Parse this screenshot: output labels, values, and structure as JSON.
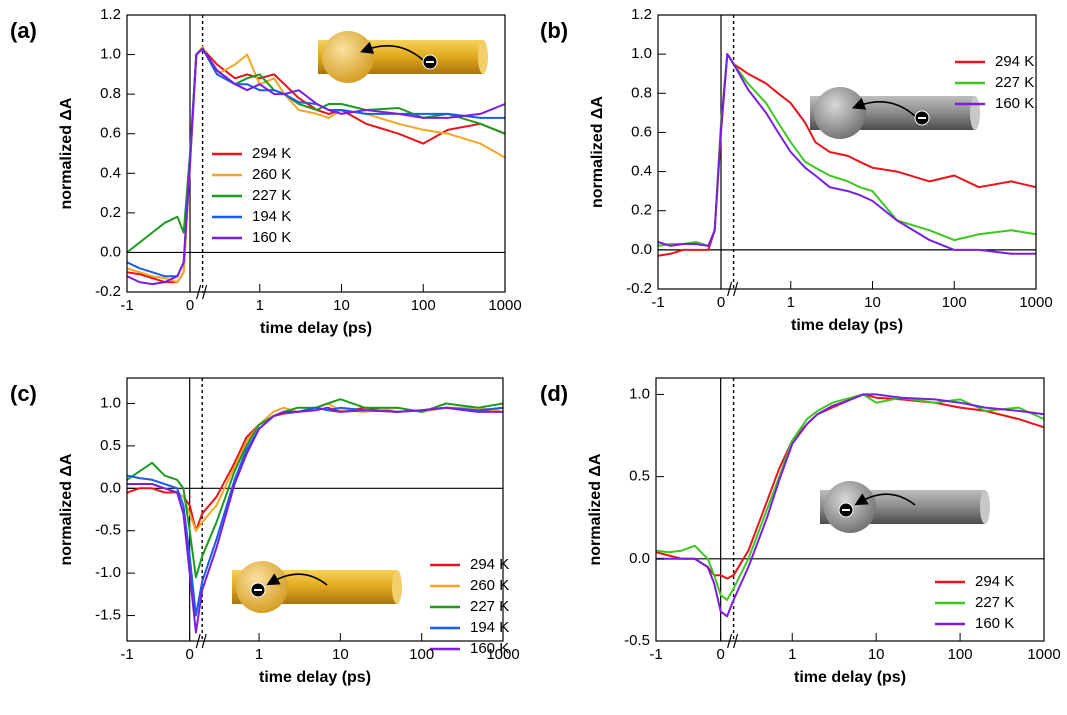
{
  "chart_data": [
    {
      "type": "line",
      "label": "(a)",
      "xlabel": "time delay (ps)",
      "ylabel": "normalized ΔA",
      "xlim": [
        -1,
        1000
      ],
      "xbreak": 0.2,
      "xticks": [
        -1,
        0,
        1,
        10,
        100,
        1000
      ],
      "ylim": [
        -0.2,
        1.2
      ],
      "yticks": [
        -0.2,
        {
          "value": 0,
          "label": "0.0"
        },
        0.2,
        0.4,
        0.6,
        0.8,
        {
          "value": 1,
          "label": "1.0"
        },
        1.2
      ],
      "x": [
        -1,
        -0.8,
        -0.6,
        -0.4,
        -0.2,
        -0.1,
        0,
        0.1,
        0.2,
        0.3,
        0.5,
        0.7,
        1,
        1.5,
        2,
        3,
        5,
        7,
        10,
        20,
        50,
        100,
        200,
        500,
        1000
      ],
      "series": [
        {
          "name": "294 K",
          "color": "#e8141a",
          "values": [
            -0.1,
            -0.11,
            -0.13,
            -0.15,
            -0.15,
            -0.1,
            0.45,
            1.0,
            1.03,
            0.95,
            0.88,
            0.9,
            0.88,
            0.9,
            0.85,
            0.78,
            0.72,
            0.7,
            0.72,
            0.65,
            0.6,
            0.55,
            0.62,
            0.65,
            0.6
          ]
        },
        {
          "name": "260 K",
          "color": "#f5a623",
          "values": [
            -0.08,
            -0.1,
            -0.12,
            -0.13,
            -0.15,
            -0.1,
            0.45,
            1.0,
            1.04,
            0.9,
            0.95,
            1.0,
            0.85,
            0.88,
            0.8,
            0.72,
            0.7,
            0.68,
            0.72,
            0.7,
            0.65,
            0.62,
            0.6,
            0.55,
            0.48
          ]
        },
        {
          "name": "227 K",
          "color": "#1e9a1e",
          "values": [
            0,
            0.05,
            0.1,
            0.15,
            0.18,
            0.1,
            0.5,
            1.0,
            1.03,
            0.92,
            0.85,
            0.88,
            0.9,
            0.82,
            0.8,
            0.75,
            0.72,
            0.75,
            0.75,
            0.72,
            0.73,
            0.68,
            0.7,
            0.65,
            0.6
          ]
        },
        {
          "name": "194 K",
          "color": "#1a5ee8",
          "values": [
            -0.05,
            -0.08,
            -0.1,
            -0.12,
            -0.12,
            -0.05,
            0.48,
            1.0,
            1.03,
            0.9,
            0.85,
            0.85,
            0.82,
            0.82,
            0.8,
            0.76,
            0.75,
            0.72,
            0.72,
            0.7,
            0.7,
            0.7,
            0.7,
            0.68,
            0.68
          ]
        },
        {
          "name": "160 K",
          "color": "#7a1ee0",
          "values": [
            -0.12,
            -0.15,
            -0.16,
            -0.15,
            -0.12,
            -0.05,
            0.45,
            1.0,
            1.03,
            0.92,
            0.85,
            0.82,
            0.85,
            0.8,
            0.8,
            0.82,
            0.75,
            0.72,
            0.7,
            0.72,
            0.7,
            0.68,
            0.68,
            0.7,
            0.75
          ]
        }
      ]
    },
    {
      "type": "line",
      "label": "(b)",
      "xlabel": "time delay (ps)",
      "ylabel": "normalized ΔA",
      "xlim": [
        -1,
        1000
      ],
      "xbreak": 0.2,
      "xticks": [
        -1,
        0,
        1,
        10,
        100,
        1000
      ],
      "ylim": [
        -0.2,
        1.2
      ],
      "yticks": [
        -0.2,
        {
          "value": 0,
          "label": "0.0"
        },
        0.2,
        0.4,
        0.6,
        0.8,
        {
          "value": 1,
          "label": "1.0"
        },
        1.2
      ],
      "x": [
        -1,
        -0.8,
        -0.6,
        -0.4,
        -0.2,
        -0.1,
        0,
        0.1,
        0.2,
        0.3,
        0.5,
        0.7,
        1,
        1.5,
        2,
        3,
        5,
        7,
        10,
        20,
        50,
        100,
        200,
        500,
        1000
      ],
      "series": [
        {
          "name": "294 K",
          "color": "#e8141a",
          "values": [
            -0.03,
            -0.02,
            0,
            0,
            0,
            0.1,
            0.6,
            1.0,
            0.95,
            0.9,
            0.85,
            0.8,
            0.75,
            0.65,
            0.55,
            0.5,
            0.48,
            0.45,
            0.42,
            0.4,
            0.35,
            0.38,
            0.32,
            0.35,
            0.32
          ]
        },
        {
          "name": "227 K",
          "color": "#3cc81e",
          "values": [
            0.02,
            0.03,
            0.03,
            0.04,
            0.02,
            0.1,
            0.65,
            1.0,
            0.95,
            0.85,
            0.75,
            0.65,
            0.55,
            0.45,
            0.42,
            0.38,
            0.35,
            0.32,
            0.3,
            0.15,
            0.1,
            0.05,
            0.08,
            0.1,
            0.08
          ]
        },
        {
          "name": "160 K",
          "color": "#7a1ee0",
          "values": [
            0.04,
            0.02,
            0.03,
            0.03,
            0.02,
            0.1,
            0.62,
            1.0,
            0.95,
            0.82,
            0.7,
            0.6,
            0.5,
            0.42,
            0.38,
            0.32,
            0.3,
            0.28,
            0.25,
            0.15,
            0.05,
            0,
            0,
            -0.02,
            -0.02
          ]
        }
      ]
    },
    {
      "type": "line",
      "label": "(c)",
      "xlabel": "time delay (ps)",
      "ylabel": "normalized ΔA",
      "xlim": [
        -1,
        1000
      ],
      "xbreak": 0.2,
      "xticks": [
        -1,
        0,
        1,
        10,
        100,
        1000
      ],
      "ylim": [
        -1.8,
        1.3
      ],
      "yticks": [
        -1.5,
        {
          "value": -1,
          "label": "-1.0"
        },
        -0.5,
        {
          "value": 0,
          "label": "0.0"
        },
        0.5,
        {
          "value": 1,
          "label": "1.0"
        }
      ],
      "x": [
        -1,
        -0.8,
        -0.6,
        -0.4,
        -0.2,
        -0.1,
        0,
        0.1,
        0.2,
        0.3,
        0.5,
        0.7,
        1,
        1.5,
        2,
        3,
        5,
        7,
        10,
        20,
        50,
        100,
        200,
        500,
        1000
      ],
      "series": [
        {
          "name": "294 K",
          "color": "#e8141a",
          "values": [
            -0.05,
            0,
            0,
            -0.05,
            -0.05,
            -0.1,
            -0.2,
            -0.5,
            -0.3,
            -0.1,
            0.3,
            0.6,
            0.75,
            0.85,
            0.88,
            0.9,
            0.95,
            0.92,
            0.9,
            0.95,
            0.9,
            0.92,
            0.95,
            0.9,
            0.95
          ]
        },
        {
          "name": "260 K",
          "color": "#f5a623",
          "values": [
            0.05,
            0.05,
            0.05,
            0,
            -0.05,
            -0.1,
            -0.3,
            -0.5,
            -0.4,
            -0.2,
            0.25,
            0.55,
            0.75,
            0.9,
            0.95,
            0.9,
            0.95,
            1.0,
            0.92,
            0.9,
            0.95,
            0.9,
            0.95,
            0.95,
            0.9
          ]
        },
        {
          "name": "227 K",
          "color": "#1e9a1e",
          "values": [
            0.1,
            0.2,
            0.3,
            0.15,
            0.1,
            0,
            -0.5,
            -1.05,
            -0.8,
            -0.4,
            0.2,
            0.5,
            0.75,
            0.85,
            0.9,
            0.95,
            0.95,
            1.0,
            1.05,
            0.95,
            0.95,
            0.9,
            1.0,
            0.95,
            1.0
          ]
        },
        {
          "name": "194 K",
          "color": "#1a5ee8",
          "values": [
            0.15,
            0.12,
            0.1,
            0.05,
            0,
            -0.2,
            -0.8,
            -1.5,
            -1.1,
            -0.6,
            0.1,
            0.45,
            0.7,
            0.85,
            0.9,
            0.9,
            0.95,
            0.92,
            0.95,
            0.92,
            0.9,
            0.92,
            0.95,
            0.92,
            0.95
          ]
        },
        {
          "name": "160 K",
          "color": "#7a1ee0",
          "values": [
            0.05,
            0.05,
            0.05,
            0,
            -0.05,
            -0.3,
            -1.0,
            -1.7,
            -1.2,
            -0.7,
            0.05,
            0.4,
            0.7,
            0.85,
            0.9,
            0.9,
            0.92,
            0.95,
            0.9,
            0.92,
            0.9,
            0.92,
            0.95,
            0.9,
            0.9
          ]
        }
      ]
    },
    {
      "type": "line",
      "label": "(d)",
      "xlabel": "time delay (ps)",
      "ylabel": "normalized ΔA",
      "xlim": [
        -1,
        1000
      ],
      "xbreak": 0.2,
      "xticks": [
        -1,
        0,
        1,
        10,
        100,
        1000
      ],
      "ylim": [
        -0.5,
        1.1
      ],
      "yticks": [
        -0.5,
        {
          "value": 0,
          "label": "0.0"
        },
        0.5,
        {
          "value": 1,
          "label": "1.0"
        }
      ],
      "x": [
        -1,
        -0.8,
        -0.6,
        -0.4,
        -0.2,
        -0.1,
        0,
        0.1,
        0.2,
        0.3,
        0.5,
        0.7,
        1,
        1.5,
        2,
        3,
        5,
        7,
        10,
        20,
        50,
        100,
        200,
        500,
        1000
      ],
      "series": [
        {
          "name": "294 K",
          "color": "#e8141a",
          "values": [
            0.04,
            0.02,
            0,
            0,
            -0.05,
            -0.1,
            -0.1,
            -0.12,
            -0.1,
            0.05,
            0.35,
            0.55,
            0.72,
            0.82,
            0.88,
            0.92,
            0.97,
            1.0,
            0.98,
            0.97,
            0.95,
            0.92,
            0.9,
            0.85,
            0.8
          ]
        },
        {
          "name": "227 K",
          "color": "#3cc81e",
          "values": [
            0.05,
            0.04,
            0.05,
            0.08,
            0,
            -0.1,
            -0.22,
            -0.25,
            -0.18,
            0,
            0.3,
            0.5,
            0.72,
            0.85,
            0.9,
            0.95,
            0.98,
            1.0,
            0.95,
            0.98,
            0.95,
            0.97,
            0.9,
            0.92,
            0.85
          ]
        },
        {
          "name": "160 K",
          "color": "#7a1ee0",
          "values": [
            0,
            0,
            0,
            0,
            -0.05,
            -0.15,
            -0.32,
            -0.35,
            -0.25,
            -0.05,
            0.25,
            0.48,
            0.7,
            0.82,
            0.88,
            0.93,
            0.97,
            1.0,
            1.0,
            0.98,
            0.97,
            0.95,
            0.92,
            0.9,
            0.88
          ]
        }
      ]
    }
  ]
}
